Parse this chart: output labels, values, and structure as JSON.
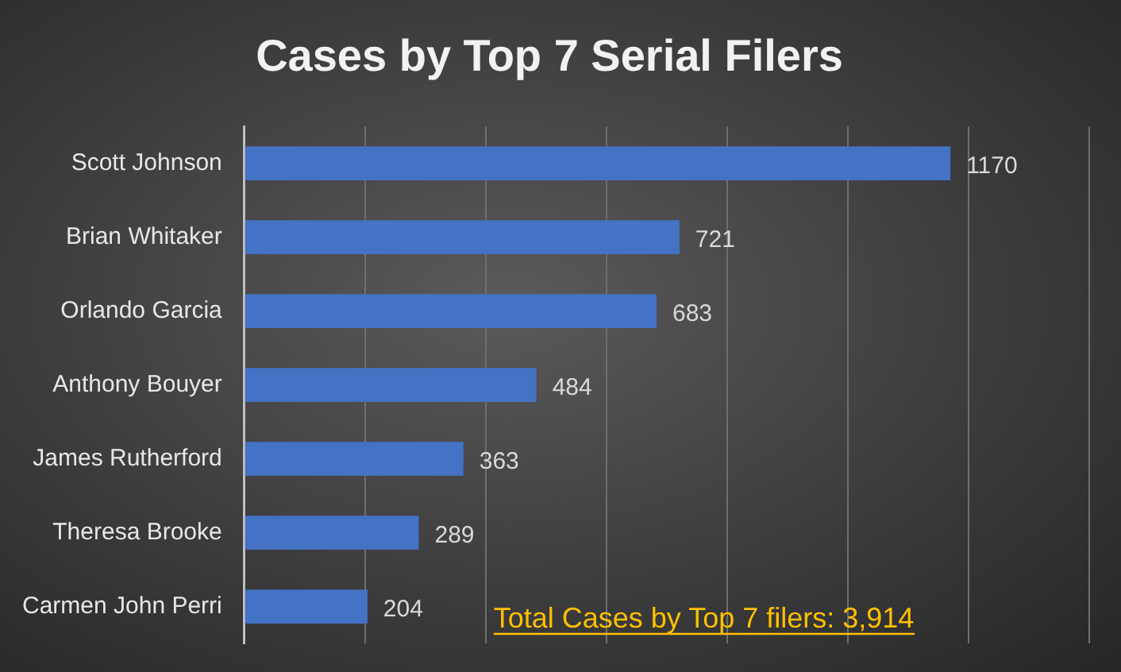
{
  "chart_data": {
    "type": "bar",
    "orientation": "horizontal",
    "title": "Cases by Top 7 Serial Filers",
    "categories": [
      "Scott Johnson",
      "Brian Whitaker",
      "Orlando Garcia",
      "Anthony Bouyer",
      "James Rutherford",
      "Theresa Brooke",
      "Carmen John Perri"
    ],
    "values": [
      1170,
      721,
      683,
      484,
      363,
      289,
      204
    ],
    "color": "#4472c4",
    "xlim": [
      0,
      1400
    ],
    "xticks": [
      {
        "value": 0,
        "label": null
      },
      {
        "value": 200,
        "label": null
      },
      {
        "value": 400,
        "label": null
      },
      {
        "value": 600,
        "label": null
      },
      {
        "value": 800,
        "label": null
      },
      {
        "value": 1000,
        "label": null
      },
      {
        "value": 1200,
        "label": null
      },
      {
        "value": 1400,
        "label": null
      }
    ],
    "tick_labels": "y",
    "grid": "x",
    "legend": false,
    "data_labels": true,
    "annotations": [
      "Total Cases by Top 7 filers: 3,914"
    ]
  }
}
